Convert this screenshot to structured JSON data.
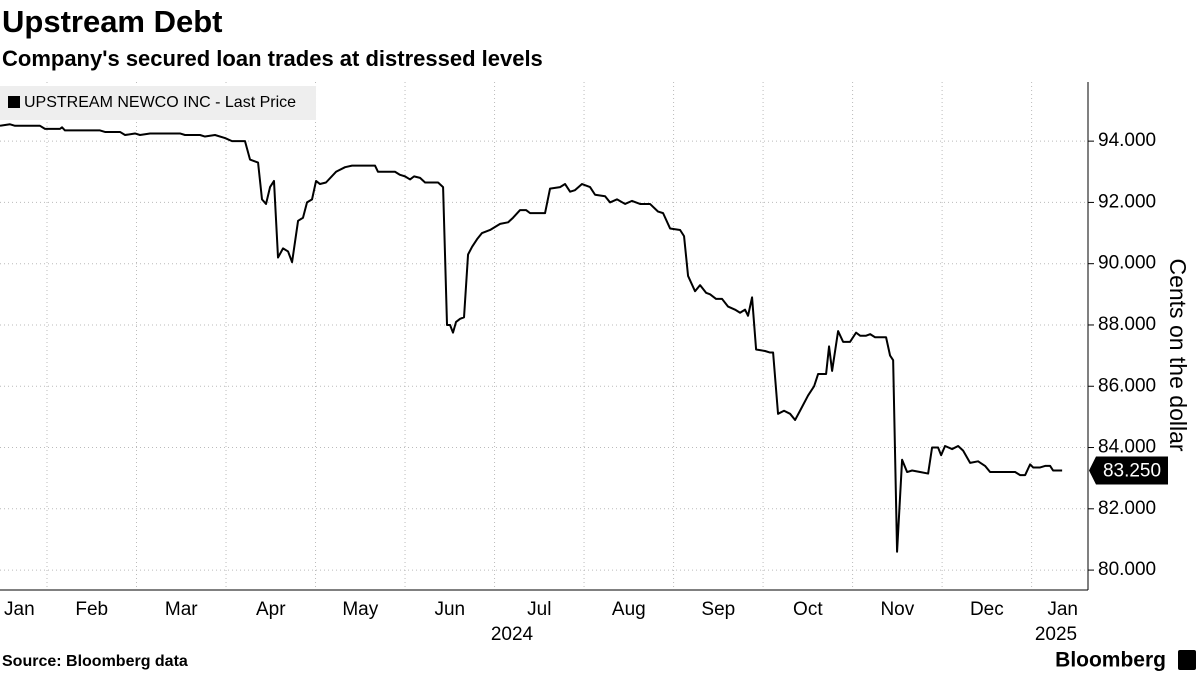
{
  "chart_data": {
    "type": "line",
    "title": "Upstream Debt",
    "subtitle": "Company's secured loan trades at distressed levels",
    "y_axis_label": "Cents on the dollar",
    "source": "Source: Bloomberg data",
    "brand": "Bloomberg",
    "x_year_labels": [
      "2024",
      "2025"
    ],
    "x": [
      0.475,
      0.587,
      0.643,
      0.922,
      0.978,
      1.145,
      1.168,
      1.201,
      1.592,
      1.648,
      1.816,
      1.872,
      1.983,
      2.039,
      2.151,
      2.486,
      2.542,
      2.71,
      2.765,
      2.877,
      2.989,
      3.067,
      3.212,
      3.268,
      3.358,
      3.402,
      3.447,
      3.492,
      3.536,
      3.581,
      3.637,
      3.693,
      3.738,
      3.805,
      3.86,
      3.905,
      3.961,
      4.006,
      4.05,
      4.117,
      4.229,
      4.33,
      4.408,
      4.665,
      4.698,
      4.888,
      4.944,
      5.0,
      5.056,
      5.101,
      5.168,
      5.224,
      5.369,
      5.425,
      5.469,
      5.503,
      5.536,
      5.57,
      5.615,
      5.659,
      5.704,
      5.749,
      5.805,
      5.86,
      5.95,
      6.062,
      6.151,
      6.207,
      6.285,
      6.352,
      6.397,
      6.564,
      6.62,
      6.732,
      6.788,
      6.844,
      6.899,
      6.977,
      7.067,
      7.123,
      7.235,
      7.29,
      7.369,
      7.458,
      7.536,
      7.626,
      7.737,
      7.827,
      7.883,
      7.961,
      8.073,
      8.117,
      8.162,
      8.24,
      8.296,
      8.363,
      8.408,
      8.475,
      8.542,
      8.609,
      8.687,
      8.743,
      8.799,
      8.832,
      8.877,
      8.922,
      9.022,
      9.078,
      9.112,
      9.167,
      9.234,
      9.302,
      9.358,
      9.413,
      9.503,
      9.57,
      9.615,
      9.704,
      9.737,
      9.771,
      9.838,
      9.894,
      9.972,
      10.039,
      10.084,
      10.151,
      10.196,
      10.251,
      10.374,
      10.419,
      10.453,
      10.497,
      10.553,
      10.609,
      10.665,
      10.754,
      10.844,
      10.888,
      10.955,
      10.989,
      11.033,
      11.112,
      11.179,
      11.235,
      11.313,
      11.402,
      11.48,
      11.536,
      11.816,
      11.872,
      11.928,
      11.983,
      12.017,
      12.095,
      12.151,
      12.207,
      12.24,
      12.341
    ],
    "series": [
      {
        "name": "UPSTREAM NEWCO INC - Last Price",
        "color": "#000000",
        "values": [
          94.5,
          94.55,
          94.5,
          94.5,
          94.4,
          94.4,
          94.45,
          94.35,
          94.35,
          94.3,
          94.3,
          94.2,
          94.25,
          94.2,
          94.25,
          94.25,
          94.2,
          94.2,
          94.15,
          94.2,
          94.1,
          94.0,
          94.0,
          93.4,
          93.3,
          92.1,
          91.95,
          92.5,
          92.7,
          90.2,
          90.5,
          90.4,
          90.05,
          91.4,
          91.5,
          92.0,
          92.1,
          92.7,
          92.6,
          92.65,
          93.0,
          93.15,
          93.2,
          93.2,
          93.0,
          93.0,
          92.9,
          92.85,
          92.75,
          92.85,
          92.8,
          92.65,
          92.65,
          92.5,
          88.0,
          88.0,
          87.75,
          88.1,
          88.2,
          88.25,
          90.3,
          90.55,
          90.8,
          91.0,
          91.1,
          91.3,
          91.35,
          91.5,
          91.75,
          91.75,
          91.65,
          91.65,
          92.45,
          92.5,
          92.6,
          92.35,
          92.4,
          92.6,
          92.5,
          92.25,
          92.2,
          92.0,
          92.1,
          91.95,
          92.05,
          91.95,
          91.95,
          91.7,
          91.65,
          91.15,
          91.1,
          90.9,
          89.6,
          89.1,
          89.3,
          89.05,
          89.0,
          88.85,
          88.85,
          88.6,
          88.5,
          88.4,
          88.5,
          88.3,
          88.9,
          87.2,
          87.15,
          87.1,
          87.1,
          85.1,
          85.2,
          85.1,
          84.9,
          85.2,
          85.7,
          86.0,
          86.4,
          86.4,
          87.3,
          86.5,
          87.8,
          87.45,
          87.45,
          87.75,
          87.65,
          87.65,
          87.7,
          87.6,
          87.6,
          87.0,
          86.85,
          80.6,
          83.6,
          83.2,
          83.25,
          83.2,
          83.15,
          84.0,
          84.0,
          83.75,
          84.05,
          83.95,
          84.05,
          83.9,
          83.5,
          83.55,
          83.4,
          83.2,
          83.2,
          83.1,
          83.1,
          83.45,
          83.35,
          83.35,
          83.4,
          83.4,
          83.25,
          83.25
        ],
        "value_labels": [
          null,
          null,
          null,
          null,
          null,
          null,
          null,
          null,
          null,
          null,
          null,
          null,
          null,
          null,
          null,
          null,
          null,
          null,
          null,
          null,
          null,
          null,
          null,
          null,
          null,
          null,
          null,
          null,
          null,
          null,
          null,
          null,
          null,
          null,
          null,
          null,
          null,
          null,
          null,
          null,
          null,
          null,
          null,
          null,
          null,
          null,
          null,
          null,
          null,
          null,
          null,
          null,
          null,
          null,
          null,
          null,
          null,
          null,
          null,
          null,
          null,
          null,
          null,
          null,
          null,
          null,
          null,
          null,
          null,
          null,
          null,
          null,
          null,
          null,
          null,
          null,
          null,
          null,
          null,
          null,
          null,
          null,
          null,
          null,
          null,
          null,
          null,
          null,
          null,
          null,
          null,
          null,
          null,
          null,
          null,
          null,
          null,
          null,
          null,
          null,
          null,
          null,
          null,
          null,
          null,
          null,
          null,
          null,
          null,
          null,
          null,
          null,
          null,
          null,
          null,
          null,
          null,
          null,
          null,
          null,
          null,
          null,
          null,
          null,
          null,
          null,
          null,
          null,
          null,
          null,
          null,
          null,
          null,
          null,
          null,
          null,
          null,
          null,
          null,
          null,
          null,
          null,
          null,
          null,
          null,
          null,
          null,
          null,
          null,
          null,
          null,
          null,
          null,
          null,
          null,
          null,
          null,
          "83.250"
        ]
      }
    ],
    "xlim": [
      0.475,
      12.63
    ],
    "xticks": [
      {
        "value": 0.5,
        "label": "Jan"
      },
      {
        "value": 1.5,
        "label": "Feb"
      },
      {
        "value": 2.5,
        "label": "Mar"
      },
      {
        "value": 3.5,
        "label": "Apr"
      },
      {
        "value": 4.5,
        "label": "May"
      },
      {
        "value": 5.5,
        "label": "Jun"
      },
      {
        "value": 6.5,
        "label": "Jul"
      },
      {
        "value": 7.5,
        "label": "Aug"
      },
      {
        "value": 8.5,
        "label": "Sep"
      },
      {
        "value": 9.5,
        "label": "Oct"
      },
      {
        "value": 10.5,
        "label": "Nov"
      },
      {
        "value": 11.5,
        "label": "Dec"
      },
      {
        "value": 12.5,
        "label": "Jan"
      }
    ],
    "ylim": [
      79.35,
      95.93
    ],
    "yticks": [
      {
        "value": 80,
        "label": "80.000"
      },
      {
        "value": 82,
        "label": "82.000"
      },
      {
        "value": 84,
        "label": "84.000"
      },
      {
        "value": 86,
        "label": "86.000"
      },
      {
        "value": 88,
        "label": "88.000"
      },
      {
        "value": 90,
        "label": "90.000"
      },
      {
        "value": 92,
        "label": "92.000"
      },
      {
        "value": 94,
        "label": "94.000"
      }
    ],
    "grid": true,
    "legend": "top-left"
  }
}
